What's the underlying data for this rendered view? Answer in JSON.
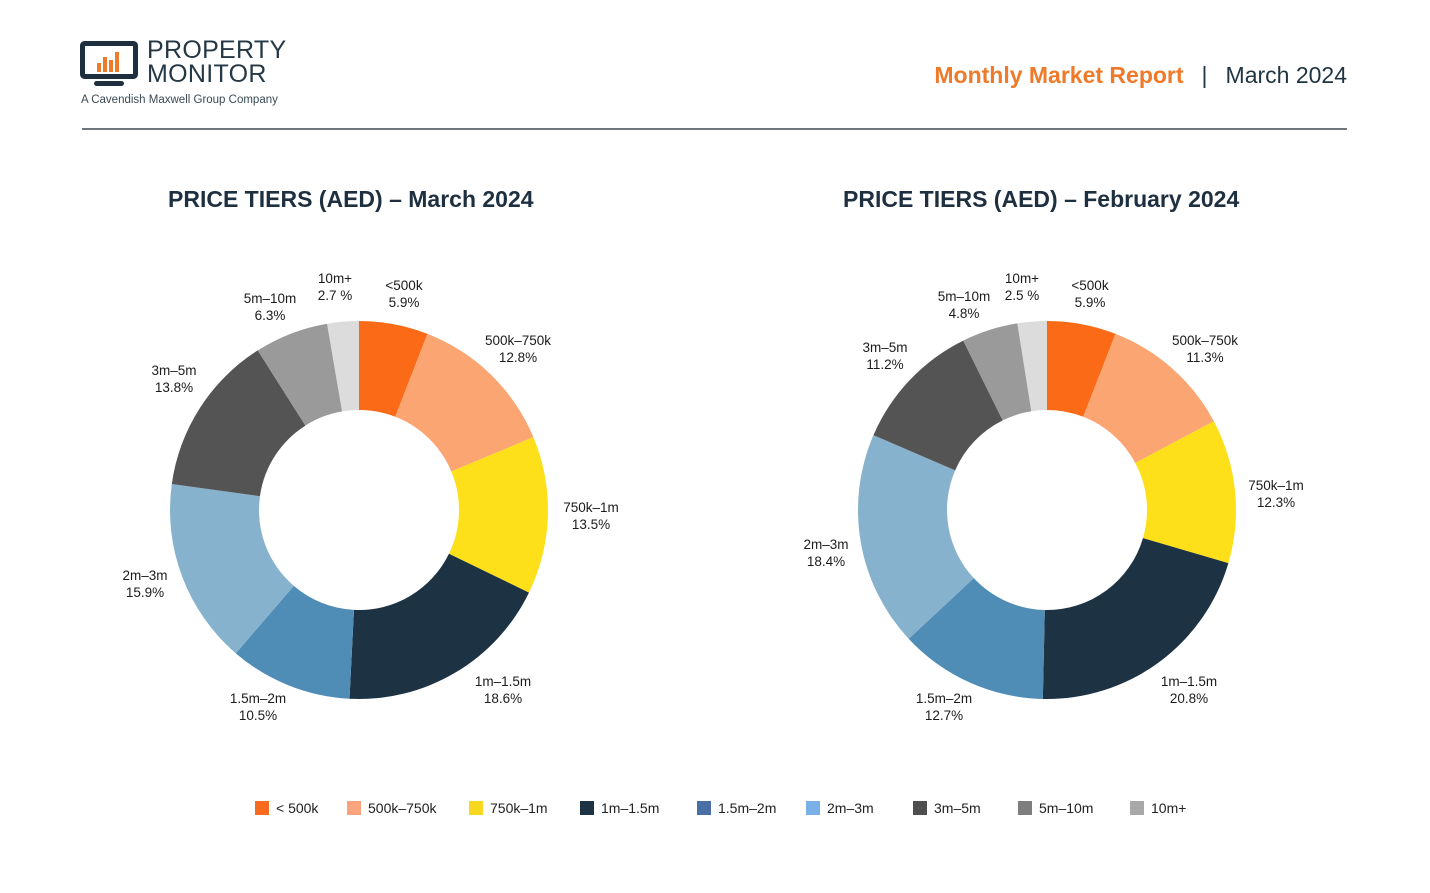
{
  "header": {
    "brand_line1": "PROPERTY",
    "brand_line2": "MONITOR",
    "brand_tagline": "A Cavendish Maxwell Group Company",
    "report_title": "Monthly Market Report",
    "separator": "|",
    "report_date": "March 2024",
    "brand_color": "#ef7a2a",
    "navy_color": "#1e3040"
  },
  "chart_data": [
    {
      "type": "pie",
      "variant": "donut",
      "title": "PRICE TIERS (AED) – March 2024",
      "categories": [
        "<500k",
        "500k–750k",
        "750k–1m",
        "1m–1.5m",
        "1.5m–2m",
        "2m–3m",
        "3m–5m",
        "5m–10m",
        "10m+"
      ],
      "values": [
        5.9,
        12.8,
        13.5,
        18.6,
        10.5,
        15.9,
        13.8,
        6.3,
        2.7
      ],
      "value_labels": [
        "5.9%",
        "12.8%",
        "13.5%",
        "18.6%",
        "10.5%",
        "15.9%",
        "13.8%",
        "6.3%",
        "2.7 %"
      ],
      "colors": [
        "#fb6a16",
        "#fba672",
        "#fde01a",
        "#1d3343",
        "#4f8db7",
        "#87b2cd",
        "#545454",
        "#9a9a9a",
        "#dcdcdc"
      ],
      "unit": "%"
    },
    {
      "type": "pie",
      "variant": "donut",
      "title": "PRICE TIERS (AED) – February 2024",
      "categories": [
        "<500k",
        "500k–750k",
        "750k–1m",
        "1m–1.5m",
        "1.5m–2m",
        "2m–3m",
        "3m–5m",
        "5m–10m",
        "10m+"
      ],
      "values": [
        5.9,
        11.3,
        12.3,
        20.8,
        12.7,
        18.4,
        11.2,
        4.8,
        2.5
      ],
      "value_labels": [
        "5.9%",
        "11.3%",
        "12.3%",
        "20.8%",
        "12.7%",
        "18.4%",
        "11.2%",
        "4.8%",
        "2.5 %"
      ],
      "colors": [
        "#fb6a16",
        "#fba672",
        "#fde01a",
        "#1d3343",
        "#4f8db7",
        "#87b2cd",
        "#545454",
        "#9a9a9a",
        "#dcdcdc"
      ],
      "unit": "%"
    }
  ],
  "legend": {
    "placement": "bottom",
    "items": [
      {
        "label": "< 500k",
        "color": "#f86a1e"
      },
      {
        "label": "500k–750k",
        "color": "#f9a47c"
      },
      {
        "label": "750k–1m",
        "color": "#f8d81f"
      },
      {
        "label": "1m–1.5m",
        "color": "#1d3343"
      },
      {
        "label": "1.5m–2m",
        "color": "#4a6ea6"
      },
      {
        "label": "2m–3m",
        "color": "#79b1e6"
      },
      {
        "label": "3m–5m",
        "color": "#4e4e4e"
      },
      {
        "label": "5m–10m",
        "color": "#7e7e7e"
      },
      {
        "label": "10m+",
        "color": "#a8a8a8"
      }
    ]
  }
}
